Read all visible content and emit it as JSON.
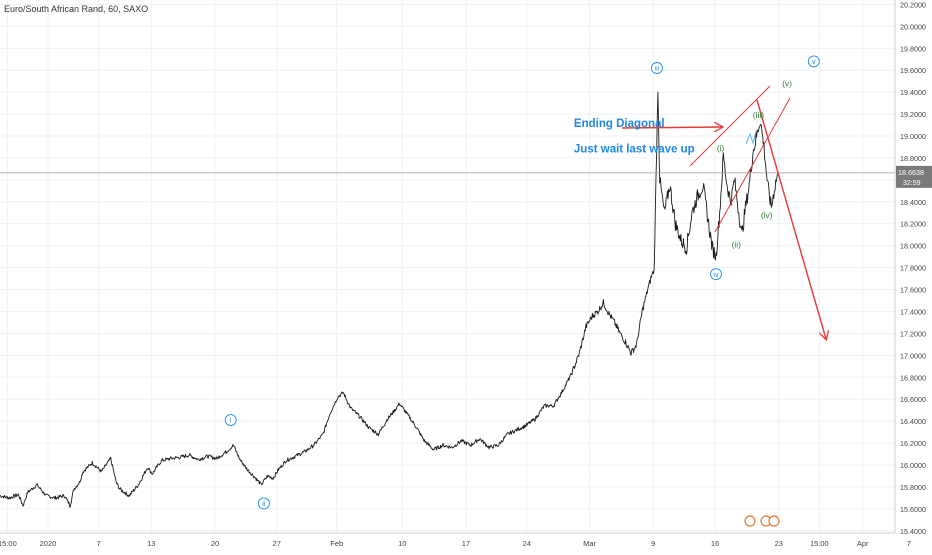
{
  "header": {
    "symbol_title": "Euro/South African Rand, 60, SAXO"
  },
  "colors": {
    "price_line": "#1a1a1a",
    "grid": "#eef1f6",
    "axis_text": "#444444",
    "elliott_blue": "#1e88e5",
    "elliott_green": "#2e7d32",
    "annotation_red": "#e53935",
    "annotation_text": "#1e88e5",
    "current_price_bg": "#7a7a7a",
    "small_wave_blue": "#64b5f6"
  },
  "chart_data": {
    "type": "line",
    "title": "Euro/South African Rand, 60, SAXO",
    "xlabel": "",
    "ylabel": "",
    "ylim": [
      15.38,
      20.24
    ],
    "y_ticks": [
      15.4,
      15.6,
      15.8,
      16.0,
      16.2,
      16.4,
      16.6,
      16.8,
      17.0,
      17.2,
      17.4,
      17.6,
      17.8,
      18.0,
      18.2,
      18.4,
      18.6,
      18.8,
      19.0,
      19.2,
      19.4,
      19.6,
      19.8,
      20.0,
      20.2
    ],
    "y_tick_labels": [
      "15.4000",
      "15.6000",
      "15.8000",
      "16.0000",
      "16.2000",
      "16.4000",
      "16.6000",
      "16.8000",
      "17.0000",
      "17.2000",
      "17.4000",
      "17.6000",
      "17.8000",
      "18.0000",
      "18.2000",
      "18.4000",
      "18.6000",
      "18.8000",
      "19.0000",
      "19.2000",
      "19.4000",
      "19.6000",
      "19.8000",
      "20.0000",
      "20.2000"
    ],
    "xlim": [
      0,
      97
    ],
    "x_ticks": [
      {
        "t": 0.8,
        "label": "15:00"
      },
      {
        "t": 5.2,
        "label": "2020"
      },
      {
        "t": 10.7,
        "label": "7"
      },
      {
        "t": 16.4,
        "label": "13"
      },
      {
        "t": 23.3,
        "label": "20"
      },
      {
        "t": 30.0,
        "label": "27"
      },
      {
        "t": 36.5,
        "label": "Feb"
      },
      {
        "t": 43.6,
        "label": "10"
      },
      {
        "t": 50.5,
        "label": "17"
      },
      {
        "t": 57.1,
        "label": "24"
      },
      {
        "t": 63.9,
        "label": "Mar"
      },
      {
        "t": 70.8,
        "label": "9"
      },
      {
        "t": 77.5,
        "label": "16"
      },
      {
        "t": 84.4,
        "label": "23"
      },
      {
        "t": 88.8,
        "label": "15:00"
      },
      {
        "t": 93.5,
        "label": "Apr"
      },
      {
        "t": 98.5,
        "label": "7"
      }
    ],
    "current_price": {
      "value": 18.6638,
      "label": "18.6638",
      "timer": "32:59"
    },
    "series": [
      {
        "values": [
          [
            0.0,
            15.72
          ],
          [
            1.0,
            15.7
          ],
          [
            2.0,
            15.73
          ],
          [
            2.5,
            15.63
          ],
          [
            3.0,
            15.75
          ],
          [
            4.0,
            15.82
          ],
          [
            5.0,
            15.72
          ],
          [
            6.0,
            15.7
          ],
          [
            7.0,
            15.72
          ],
          [
            7.6,
            15.63
          ],
          [
            8.0,
            15.78
          ],
          [
            8.6,
            15.84
          ],
          [
            9.0,
            15.94
          ],
          [
            10.0,
            16.02
          ],
          [
            11.0,
            15.94
          ],
          [
            12.0,
            16.06
          ],
          [
            12.6,
            15.84
          ],
          [
            13.0,
            15.78
          ],
          [
            14.0,
            15.72
          ],
          [
            15.0,
            15.82
          ],
          [
            16.0,
            15.98
          ],
          [
            16.5,
            15.92
          ],
          [
            17.5,
            16.04
          ],
          [
            18.5,
            16.06
          ],
          [
            19.5,
            16.07
          ],
          [
            20.5,
            16.09
          ],
          [
            21.5,
            16.05
          ],
          [
            22.5,
            16.08
          ],
          [
            23.5,
            16.06
          ],
          [
            24.5,
            16.12
          ],
          [
            25.3,
            16.18
          ],
          [
            26.0,
            16.05
          ],
          [
            26.8,
            15.96
          ],
          [
            27.5,
            15.9
          ],
          [
            28.3,
            15.82
          ],
          [
            29.0,
            15.9
          ],
          [
            29.6,
            15.88
          ],
          [
            30.2,
            15.96
          ],
          [
            31.0,
            16.04
          ],
          [
            32.0,
            16.08
          ],
          [
            33.0,
            16.12
          ],
          [
            34.0,
            16.18
          ],
          [
            35.0,
            16.28
          ],
          [
            35.8,
            16.48
          ],
          [
            36.6,
            16.62
          ],
          [
            37.2,
            16.66
          ],
          [
            38.0,
            16.52
          ],
          [
            39.0,
            16.44
          ],
          [
            40.0,
            16.34
          ],
          [
            41.0,
            16.28
          ],
          [
            42.0,
            16.42
          ],
          [
            42.6,
            16.48
          ],
          [
            43.3,
            16.56
          ],
          [
            44.0,
            16.48
          ],
          [
            45.0,
            16.36
          ],
          [
            46.0,
            16.22
          ],
          [
            47.0,
            16.14
          ],
          [
            48.0,
            16.18
          ],
          [
            49.0,
            16.16
          ],
          [
            50.0,
            16.22
          ],
          [
            51.0,
            16.18
          ],
          [
            52.0,
            16.24
          ],
          [
            53.0,
            16.16
          ],
          [
            54.0,
            16.18
          ],
          [
            55.0,
            16.28
          ],
          [
            56.0,
            16.32
          ],
          [
            57.0,
            16.36
          ],
          [
            58.0,
            16.42
          ],
          [
            59.0,
            16.54
          ],
          [
            60.0,
            16.54
          ],
          [
            61.0,
            16.68
          ],
          [
            62.0,
            16.84
          ],
          [
            62.8,
            17.02
          ],
          [
            63.5,
            17.26
          ],
          [
            64.2,
            17.36
          ],
          [
            64.8,
            17.4
          ],
          [
            65.4,
            17.48
          ],
          [
            66.0,
            17.38
          ],
          [
            66.6,
            17.3
          ],
          [
            67.2,
            17.2
          ],
          [
            67.8,
            17.12
          ],
          [
            68.4,
            17.02
          ],
          [
            69.0,
            17.1
          ],
          [
            69.6,
            17.4
          ],
          [
            70.2,
            17.6
          ],
          [
            70.6,
            17.72
          ],
          [
            70.9,
            17.78
          ],
          [
            71.1,
            18.6
          ],
          [
            71.3,
            19.45
          ],
          [
            71.5,
            18.6
          ],
          [
            72.0,
            18.3
          ],
          [
            72.6,
            18.55
          ],
          [
            73.2,
            18.2
          ],
          [
            73.8,
            18.05
          ],
          [
            74.4,
            17.98
          ],
          [
            75.0,
            18.3
          ],
          [
            75.6,
            18.45
          ],
          [
            76.2,
            18.55
          ],
          [
            76.8,
            18.2
          ],
          [
            77.2,
            17.98
          ],
          [
            77.6,
            17.9
          ],
          [
            78.0,
            18.3
          ],
          [
            78.4,
            18.82
          ],
          [
            78.8,
            18.55
          ],
          [
            79.2,
            18.4
          ],
          [
            79.6,
            18.6
          ],
          [
            80.0,
            18.35
          ],
          [
            80.4,
            18.1
          ],
          [
            80.8,
            18.35
          ],
          [
            81.2,
            18.55
          ],
          [
            81.6,
            18.85
          ],
          [
            82.0,
            19.0
          ],
          [
            82.4,
            19.15
          ],
          [
            82.8,
            18.9
          ],
          [
            83.2,
            18.55
          ],
          [
            83.6,
            18.35
          ],
          [
            84.0,
            18.55
          ],
          [
            84.3,
            18.66
          ]
        ]
      }
    ],
    "annotations": [
      {
        "id": "wave-i-circled",
        "kind": "circle",
        "text": "i",
        "t": 25.0,
        "v": 16.41,
        "color_key": "elliott_blue"
      },
      {
        "id": "wave-ii-circled",
        "kind": "circle",
        "text": "ii",
        "t": 28.6,
        "v": 15.65,
        "color_key": "elliott_blue"
      },
      {
        "id": "wave-iii-circled",
        "kind": "circle",
        "text": "iii",
        "t": 71.2,
        "v": 19.62,
        "color_key": "elliott_blue"
      },
      {
        "id": "wave-iv-circled",
        "kind": "circle",
        "text": "iv",
        "t": 77.6,
        "v": 17.74,
        "color_key": "elliott_blue"
      },
      {
        "id": "wave-v-circled",
        "kind": "circle",
        "text": "v",
        "t": 88.2,
        "v": 19.68,
        "color_key": "elliott_blue"
      },
      {
        "id": "wave-i-paren",
        "kind": "text",
        "text": "(i)",
        "t": 78.1,
        "v": 18.89,
        "color_key": "elliott_green"
      },
      {
        "id": "wave-ii-paren",
        "kind": "text",
        "text": "(ii)",
        "t": 79.8,
        "v": 18.01,
        "color_key": "elliott_green"
      },
      {
        "id": "wave-iii-paren",
        "kind": "text",
        "text": "(iii)",
        "t": 82.2,
        "v": 19.19,
        "color_key": "elliott_green"
      },
      {
        "id": "wave-iv-paren",
        "kind": "text",
        "text": "(iv)",
        "t": 83.1,
        "v": 18.28,
        "color_key": "elliott_green"
      },
      {
        "id": "wave-v-paren",
        "kind": "text",
        "text": "(v)",
        "t": 85.3,
        "v": 19.48,
        "color_key": "elliott_green"
      }
    ],
    "texts": [
      {
        "id": "ending-diagonal-text",
        "text": "Ending Diagonal",
        "t": 62.2,
        "v": 19.08
      },
      {
        "id": "wait-wave-text",
        "text": "Just wait last wave up",
        "t": 62.2,
        "v": 18.85
      }
    ]
  }
}
